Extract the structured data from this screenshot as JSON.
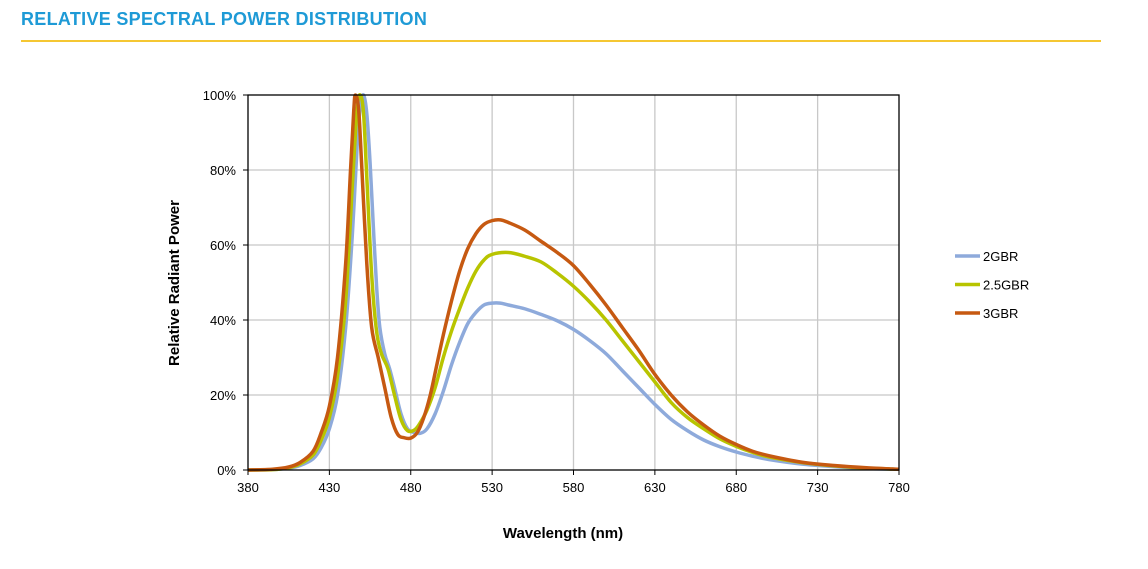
{
  "header": {
    "title": "RELATIVE SPECTRAL POWER DISTRIBUTION",
    "rule_color": "#f5c732",
    "title_color": "#1e9ad6"
  },
  "chart_data": {
    "type": "line",
    "title": "",
    "xlabel": "Wavelength (nm)",
    "ylabel": "Relative Radiant Power",
    "xlim": [
      380,
      780
    ],
    "ylim": [
      0,
      100
    ],
    "xticks": [
      380,
      430,
      480,
      530,
      580,
      630,
      680,
      730,
      780
    ],
    "yticks": [
      "0%",
      "20%",
      "40%",
      "60%",
      "80%",
      "100%"
    ],
    "grid": true,
    "legend": "right",
    "series": [
      {
        "name": "2GBR",
        "color": "#8eaadb",
        "points": [
          [
            380,
            0
          ],
          [
            395,
            0.1
          ],
          [
            405,
            0.5
          ],
          [
            412,
            1.2
          ],
          [
            420,
            3
          ],
          [
            425,
            6
          ],
          [
            430,
            11
          ],
          [
            435,
            20
          ],
          [
            440,
            38
          ],
          [
            444,
            62
          ],
          [
            447,
            86
          ],
          [
            449,
            97
          ],
          [
            451,
            100
          ],
          [
            453,
            95
          ],
          [
            455,
            82
          ],
          [
            457,
            65
          ],
          [
            459,
            49
          ],
          [
            461,
            38
          ],
          [
            464,
            31
          ],
          [
            467,
            27
          ],
          [
            470,
            22
          ],
          [
            474,
            15
          ],
          [
            478,
            11
          ],
          [
            482,
            10
          ],
          [
            486,
            9.8
          ],
          [
            490,
            11
          ],
          [
            495,
            15
          ],
          [
            500,
            21
          ],
          [
            505,
            28
          ],
          [
            510,
            34
          ],
          [
            515,
            39
          ],
          [
            520,
            42
          ],
          [
            525,
            44
          ],
          [
            530,
            44.5
          ],
          [
            535,
            44.5
          ],
          [
            540,
            44
          ],
          [
            550,
            43
          ],
          [
            560,
            41.5
          ],
          [
            570,
            39.8
          ],
          [
            580,
            37.5
          ],
          [
            590,
            34.5
          ],
          [
            600,
            31
          ],
          [
            610,
            26.5
          ],
          [
            620,
            22
          ],
          [
            630,
            17.5
          ],
          [
            640,
            13.5
          ],
          [
            650,
            10.5
          ],
          [
            660,
            8
          ],
          [
            670,
            6.2
          ],
          [
            680,
            4.8
          ],
          [
            690,
            3.7
          ],
          [
            700,
            2.8
          ],
          [
            720,
            1.6
          ],
          [
            740,
            0.9
          ],
          [
            760,
            0.4
          ],
          [
            780,
            0.2
          ]
        ]
      },
      {
        "name": "2.5GBR",
        "color": "#b8c400",
        "points": [
          [
            380,
            0
          ],
          [
            395,
            0.1
          ],
          [
            405,
            0.6
          ],
          [
            412,
            1.6
          ],
          [
            420,
            4
          ],
          [
            425,
            8
          ],
          [
            430,
            14
          ],
          [
            435,
            25
          ],
          [
            440,
            45
          ],
          [
            444,
            75
          ],
          [
            447,
            96
          ],
          [
            449,
            100
          ],
          [
            451,
            95
          ],
          [
            453,
            78
          ],
          [
            456,
            52
          ],
          [
            459,
            37
          ],
          [
            462,
            31
          ],
          [
            466,
            27
          ],
          [
            470,
            20
          ],
          [
            474,
            13.5
          ],
          [
            478,
            10.5
          ],
          [
            482,
            10.6
          ],
          [
            485,
            12
          ],
          [
            490,
            16
          ],
          [
            495,
            22
          ],
          [
            500,
            30
          ],
          [
            505,
            37
          ],
          [
            510,
            43
          ],
          [
            515,
            48.5
          ],
          [
            520,
            53
          ],
          [
            525,
            56
          ],
          [
            530,
            57.5
          ],
          [
            540,
            58
          ],
          [
            550,
            57
          ],
          [
            560,
            55.5
          ],
          [
            570,
            52.5
          ],
          [
            580,
            49
          ],
          [
            590,
            44.8
          ],
          [
            600,
            40
          ],
          [
            610,
            34.5
          ],
          [
            620,
            29
          ],
          [
            630,
            23.5
          ],
          [
            640,
            18
          ],
          [
            650,
            14
          ],
          [
            660,
            11
          ],
          [
            670,
            8.3
          ],
          [
            680,
            6.3
          ],
          [
            690,
            4.7
          ],
          [
            700,
            3.5
          ],
          [
            720,
            2
          ],
          [
            740,
            1.1
          ],
          [
            760,
            0.5
          ],
          [
            780,
            0.2
          ]
        ]
      },
      {
        "name": "3GBR",
        "color": "#c65911",
        "points": [
          [
            380,
            0
          ],
          [
            395,
            0.2
          ],
          [
            405,
            0.8
          ],
          [
            412,
            2
          ],
          [
            420,
            5
          ],
          [
            425,
            10
          ],
          [
            430,
            17
          ],
          [
            435,
            30
          ],
          [
            440,
            55
          ],
          [
            443,
            80
          ],
          [
            445,
            96
          ],
          [
            446,
            100
          ],
          [
            448,
            96
          ],
          [
            450,
            80
          ],
          [
            453,
            55
          ],
          [
            456,
            38
          ],
          [
            460,
            30
          ],
          [
            464,
            22
          ],
          [
            468,
            14
          ],
          [
            472,
            9.5
          ],
          [
            476,
            8.6
          ],
          [
            480,
            8.5
          ],
          [
            484,
            10
          ],
          [
            488,
            14
          ],
          [
            492,
            20
          ],
          [
            496,
            28
          ],
          [
            500,
            36
          ],
          [
            505,
            45
          ],
          [
            510,
            53
          ],
          [
            515,
            59
          ],
          [
            520,
            63
          ],
          [
            525,
            65.5
          ],
          [
            530,
            66.5
          ],
          [
            535,
            66.7
          ],
          [
            540,
            66
          ],
          [
            550,
            64
          ],
          [
            560,
            61
          ],
          [
            570,
            58
          ],
          [
            580,
            54.5
          ],
          [
            590,
            49.5
          ],
          [
            600,
            44
          ],
          [
            610,
            38
          ],
          [
            620,
            32
          ],
          [
            630,
            25.5
          ],
          [
            640,
            20
          ],
          [
            650,
            15.5
          ],
          [
            660,
            12
          ],
          [
            670,
            9
          ],
          [
            680,
            6.8
          ],
          [
            690,
            5
          ],
          [
            700,
            3.8
          ],
          [
            720,
            2.1
          ],
          [
            740,
            1.2
          ],
          [
            760,
            0.6
          ],
          [
            780,
            0.2
          ]
        ]
      }
    ]
  }
}
